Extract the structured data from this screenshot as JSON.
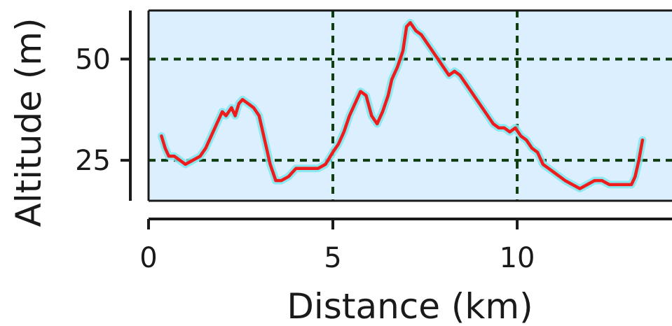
{
  "chart_data": {
    "type": "line",
    "title": "",
    "xlabel": "Distance (km)",
    "ylabel": "Altitude (m)",
    "xlim": [
      0,
      14.2
    ],
    "ylim": [
      15,
      62
    ],
    "xticks": [
      0,
      5,
      10
    ],
    "yticks": [
      25,
      50
    ],
    "grid": true,
    "colors": {
      "line": "#ee1c1c",
      "plot_background": "#dcefff",
      "grid": "#0f3d0f"
    },
    "series": [
      {
        "x": [
          0.35,
          0.45,
          0.55,
          0.7,
          0.85,
          1.0,
          1.2,
          1.4,
          1.55,
          1.7,
          1.85,
          2.0,
          2.1,
          2.25,
          2.35,
          2.45,
          2.55,
          2.7,
          2.85,
          3.0,
          3.15,
          3.3,
          3.45,
          3.6,
          3.8,
          4.0,
          4.2,
          4.4,
          4.6,
          4.8,
          5.0,
          5.15,
          5.3,
          5.45,
          5.6,
          5.75,
          5.9,
          6.05,
          6.2,
          6.35,
          6.5,
          6.6,
          6.75,
          6.9,
          7.0,
          7.1,
          7.25,
          7.4,
          7.55,
          7.7,
          7.85,
          8.0,
          8.15,
          8.3,
          8.45,
          8.6,
          8.75,
          8.9,
          9.05,
          9.2,
          9.35,
          9.5,
          9.65,
          9.8,
          9.95,
          10.1,
          10.25,
          10.4,
          10.55,
          10.7,
          10.85,
          11.0,
          11.15,
          11.3,
          11.5,
          11.7,
          11.9,
          12.1,
          12.3,
          12.5,
          12.7,
          12.9,
          13.1,
          13.2,
          13.3,
          13.4
        ],
        "y": [
          31,
          28,
          26,
          26,
          25,
          24,
          25,
          26,
          28,
          31,
          34,
          37,
          36,
          38,
          36,
          39,
          40,
          39,
          38,
          36,
          30,
          24,
          20,
          20,
          21,
          23,
          23,
          23,
          23,
          24,
          27,
          29,
          32,
          36,
          39,
          42,
          41,
          36,
          34,
          37,
          41,
          45,
          48,
          52,
          58,
          59,
          57,
          56,
          54,
          52,
          50,
          48,
          46,
          47,
          46,
          44,
          42,
          40,
          38,
          36,
          34,
          33,
          33,
          32,
          33,
          31,
          30,
          28,
          27,
          24,
          23,
          22,
          21,
          20,
          19,
          18,
          19,
          20,
          20,
          19,
          19,
          19,
          19,
          21,
          25,
          30
        ]
      }
    ]
  }
}
